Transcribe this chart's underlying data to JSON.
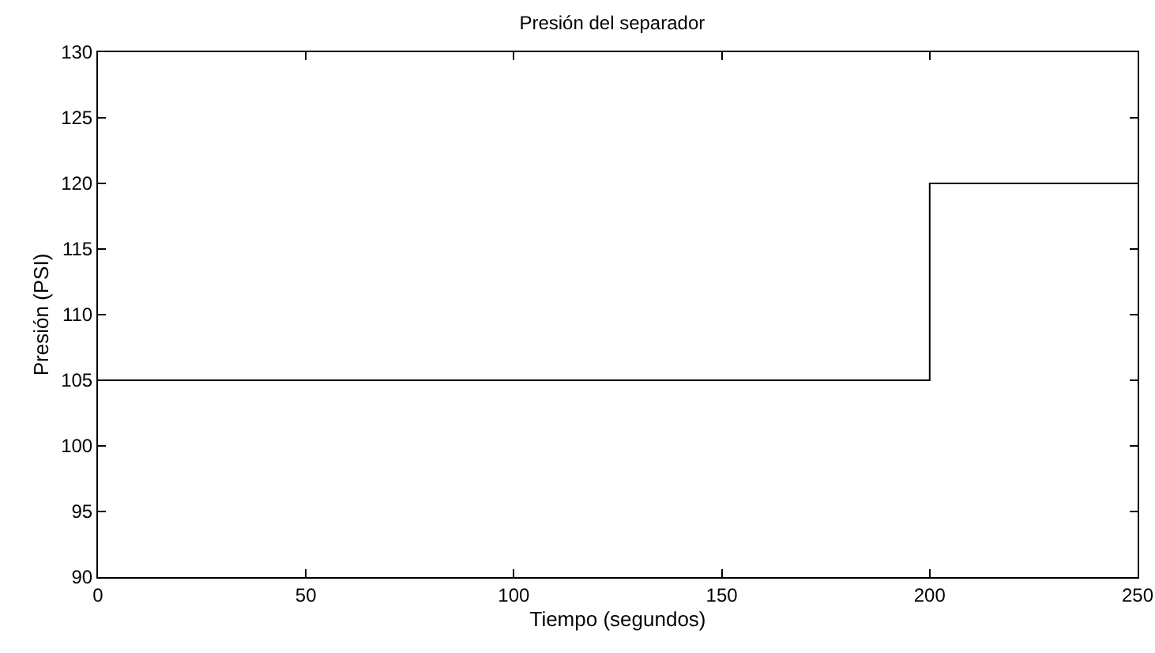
{
  "chart_data": {
    "type": "step",
    "title": "Presión del separador",
    "xlabel": "Tiempo (segundos)",
    "ylabel": "Presión (PSI)",
    "x": [
      0,
      200,
      250
    ],
    "series": [
      {
        "color": "#000000",
        "values": [
          105,
          120,
          120
        ]
      }
    ],
    "xlim": [
      0,
      250
    ],
    "xticks": [
      0,
      50,
      100,
      150,
      200,
      250
    ],
    "ylim": [
      90,
      130
    ],
    "yticks": [
      90,
      95,
      100,
      105,
      110,
      115,
      120,
      125,
      130
    ],
    "grid": false
  }
}
